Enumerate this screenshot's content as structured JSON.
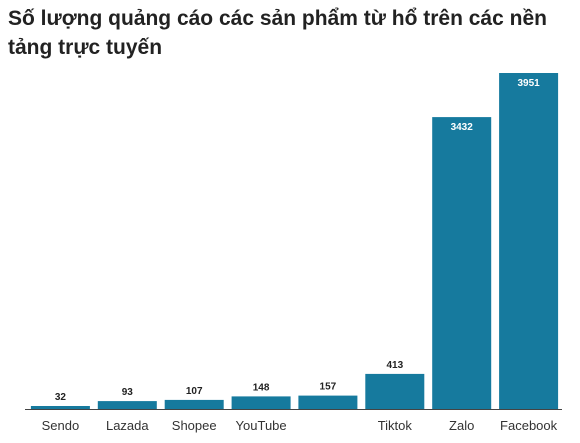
{
  "chart_data": {
    "type": "bar",
    "title": "Số lượng quảng cáo các sản phẩm từ hổ trên các nền tảng trực tuyến",
    "categories": [
      "Sendo",
      "Lazada",
      "Shopee",
      "YouTube",
      "",
      "Tiktok",
      "Zalo",
      "Facebook"
    ],
    "values": [
      32,
      93,
      107,
      148,
      157,
      413,
      3432,
      3951
    ],
    "xlabel": "",
    "ylabel": "",
    "ylim": [
      0,
      3951
    ],
    "grid": false,
    "legend": "none",
    "colors": {
      "bar": "#167a9e",
      "axis": "#444444",
      "label_outside": "#222222",
      "label_inside": "#ffffff"
    }
  }
}
